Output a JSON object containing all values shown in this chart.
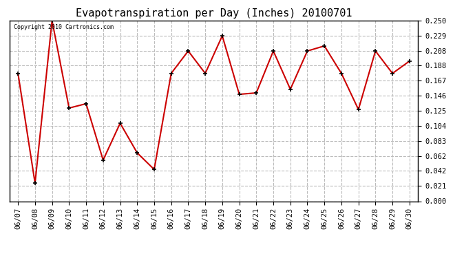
{
  "title": "Evapotranspiration per Day (Inches) 20100701",
  "copyright_text": "Copyright 2010 Cartronics.com",
  "dates": [
    "06/07",
    "06/08",
    "06/09",
    "06/10",
    "06/11",
    "06/12",
    "06/13",
    "06/14",
    "06/15",
    "06/16",
    "06/17",
    "06/18",
    "06/19",
    "06/20",
    "06/21",
    "06/22",
    "06/23",
    "06/24",
    "06/25",
    "06/26",
    "06/27",
    "06/28",
    "06/29",
    "06/30"
  ],
  "values": [
    0.177,
    0.025,
    0.25,
    0.129,
    0.135,
    0.057,
    0.108,
    0.067,
    0.044,
    0.177,
    0.208,
    0.177,
    0.229,
    0.148,
    0.15,
    0.208,
    0.155,
    0.208,
    0.215,
    0.177,
    0.127,
    0.208,
    0.177,
    0.194
  ],
  "yticks": [
    0.0,
    0.021,
    0.042,
    0.062,
    0.083,
    0.104,
    0.125,
    0.146,
    0.167,
    0.188,
    0.208,
    0.229,
    0.25
  ],
  "ylim": [
    0.0,
    0.25
  ],
  "line_color": "#cc0000",
  "marker_color": "#000000",
  "bg_color": "#ffffff",
  "plot_bg_color": "#ffffff",
  "grid_color": "#bbbbbb",
  "title_fontsize": 11,
  "copyright_fontsize": 6,
  "tick_fontsize": 7.5
}
